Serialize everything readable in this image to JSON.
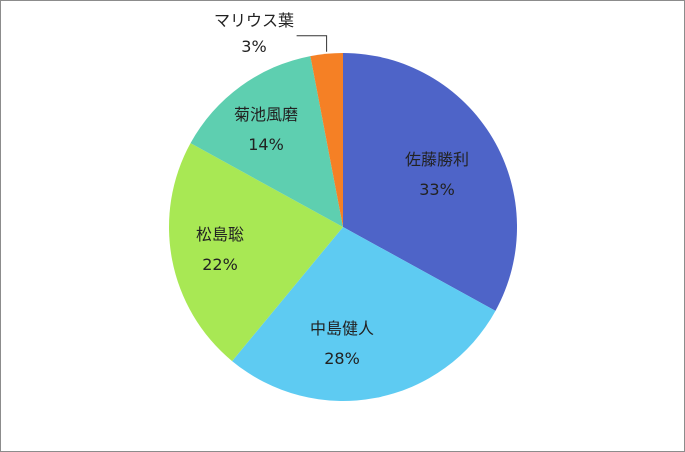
{
  "chart_data": {
    "type": "pie",
    "title": "",
    "legend": "none",
    "start_angle_deg": 0,
    "direction": "clockwise",
    "slices": [
      {
        "label": "佐藤勝利",
        "value": 33,
        "value_label": "33%",
        "color": "#4E64C8"
      },
      {
        "label": "中島健人",
        "value": 28,
        "value_label": "28%",
        "color": "#5ECBF2"
      },
      {
        "label": "松島聡",
        "value": 22,
        "value_label": "22%",
        "color": "#A8E854"
      },
      {
        "label": "菊池風磨",
        "value": 14,
        "value_label": "14%",
        "color": "#5ECFB0"
      },
      {
        "label": "マリウス葉",
        "value": 3,
        "value_label": "3%",
        "color": "#F58025"
      }
    ]
  }
}
